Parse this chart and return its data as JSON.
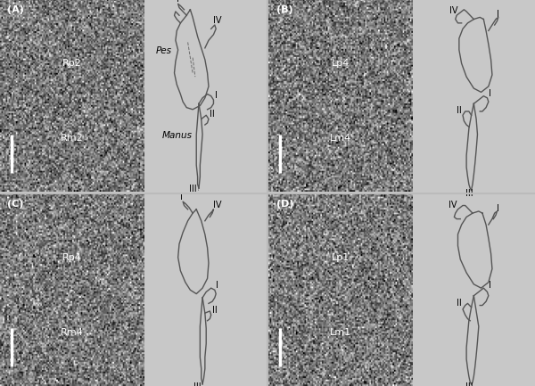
{
  "panels": [
    "A",
    "B",
    "C",
    "D"
  ],
  "labels_photo": {
    "A": [
      "Rp2",
      "Rm2"
    ],
    "B": [
      "Lp4",
      "Lm4"
    ],
    "C": [
      "Rp4",
      "Rm4"
    ],
    "D": [
      "Lp1",
      "Lm1"
    ]
  },
  "outer_bg": "#c8c8c8",
  "photo_bg_A": "#7a7a7a",
  "photo_bg_B": "#888888",
  "photo_bg_C": "#6a6a6a",
  "photo_bg_D": "#858585",
  "drawing_bg": "#f2f2f2",
  "line_color": "#555555",
  "text_color": "#111111",
  "label_color_A": "#dddddd",
  "label_color_B": "#dddddd",
  "label_color_C": "#cccccc",
  "label_color_D": "#cccccc",
  "panel_label_color": "#000000",
  "separator_color": "#bbbbbb"
}
